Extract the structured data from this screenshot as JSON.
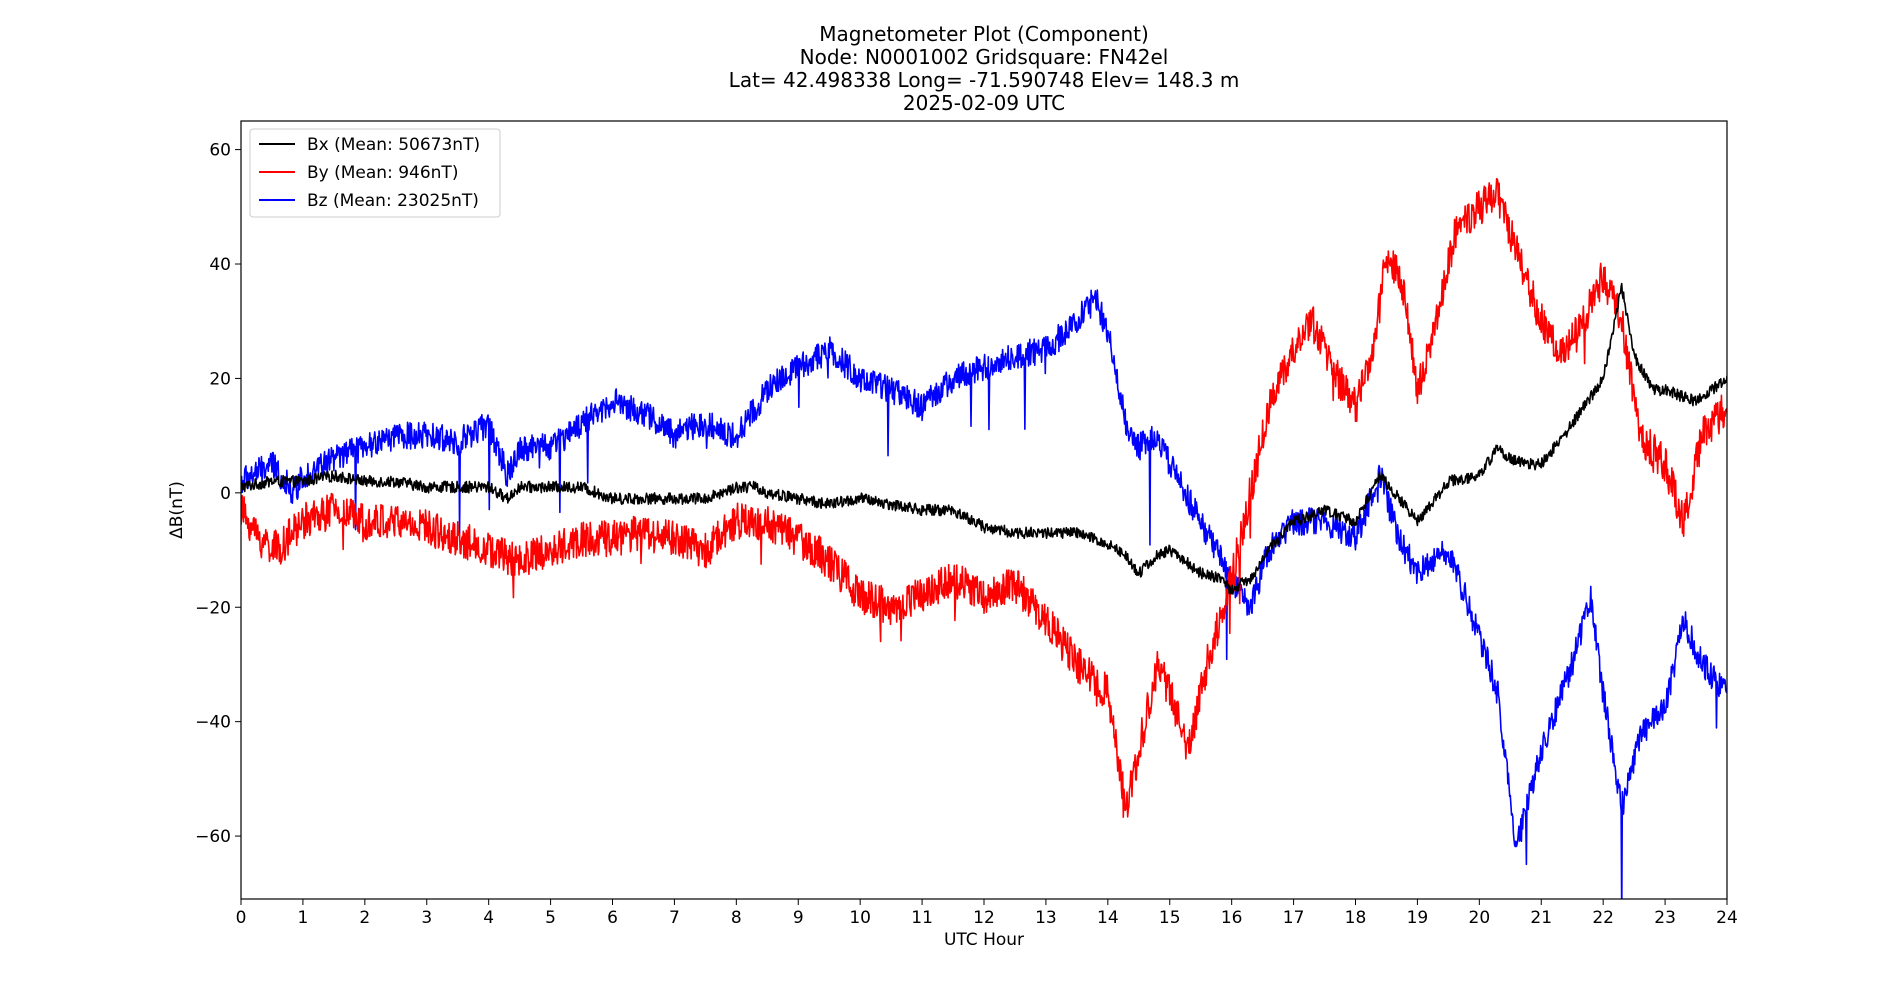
{
  "chart_data": {
    "type": "line",
    "title_lines": [
      "Magnetometer Plot (Component)",
      "Node:  N0001002     Gridsquare:  FN42el",
      "Lat= 42.498338    Long= -71.590748    Elev= 148.3 m",
      "2025-02-09  UTC"
    ],
    "xlabel": "UTC Hour",
    "ylabel": "ΔB(nT)",
    "xlim": [
      0,
      24
    ],
    "ylim": [
      -71,
      65
    ],
    "xticks": [
      0,
      1,
      2,
      3,
      4,
      5,
      6,
      7,
      8,
      9,
      10,
      11,
      12,
      13,
      14,
      15,
      16,
      17,
      18,
      19,
      20,
      21,
      22,
      23,
      24
    ],
    "xtick_labels": [
      "0",
      "1",
      "2",
      "3",
      "4",
      "5",
      "6",
      "7",
      "8",
      "9",
      "10",
      "11",
      "12",
      "13",
      "14",
      "15",
      "16",
      "17",
      "18",
      "19",
      "20",
      "21",
      "22",
      "23",
      "24"
    ],
    "yticks": [
      -60,
      -40,
      -20,
      0,
      20,
      40,
      60
    ],
    "ytick_labels": [
      "−60",
      "−40",
      "−20",
      "0",
      "20",
      "40",
      "60"
    ],
    "grid": false,
    "legend_position": "top-left",
    "series": [
      {
        "name": "Bx (Mean: 50673nT)",
        "color": "#000000",
        "x": [
          0,
          0.5,
          1,
          1.5,
          2,
          2.5,
          3,
          3.5,
          4,
          4.3,
          4.5,
          5,
          5.5,
          6,
          6.5,
          7,
          7.5,
          8,
          8.3,
          8.5,
          9,
          9.5,
          10,
          10.5,
          11,
          11.5,
          12,
          12.5,
          13,
          13.5,
          14,
          14.3,
          14.5,
          14.8,
          15,
          15.5,
          15.8,
          16,
          16.3,
          16.6,
          17,
          17.5,
          18,
          18.4,
          18.7,
          19,
          19.5,
          20,
          20.3,
          20.5,
          20.8,
          21,
          21.5,
          22,
          22.3,
          22.5,
          22.8,
          23,
          23.5,
          24
        ],
        "values": [
          1,
          2,
          2,
          3,
          2,
          2,
          1,
          1,
          1,
          -1,
          1,
          1,
          1,
          -1,
          -1,
          -1,
          -1,
          1,
          1,
          0,
          -1,
          -2,
          -1,
          -2,
          -3,
          -3,
          -6,
          -7,
          -7,
          -7,
          -9,
          -11,
          -14,
          -11,
          -10,
          -14,
          -15,
          -17,
          -15,
          -10,
          -5,
          -3,
          -5,
          3,
          -1,
          -5,
          2,
          3,
          8,
          6,
          5,
          5,
          12,
          20,
          36,
          24,
          18,
          18,
          16,
          20
        ],
        "style_notes": "noisy"
      },
      {
        "name": "By (Mean: 946nT)",
        "color": "#ff0000",
        "x": [
          0,
          0.3,
          0.6,
          1,
          1.5,
          2,
          2.5,
          3,
          3.5,
          4,
          4.5,
          5,
          5.5,
          6,
          6.5,
          7,
          7.5,
          8,
          8.5,
          9,
          9.5,
          10,
          10.5,
          11,
          11.5,
          12,
          12.5,
          13,
          13.5,
          14,
          14.3,
          14.5,
          14.8,
          15,
          15.3,
          15.6,
          16,
          16.3,
          16.6,
          17,
          17.3,
          17.6,
          18,
          18.3,
          18.5,
          18.8,
          19,
          19.3,
          19.6,
          20,
          20.3,
          20.6,
          21,
          21.3,
          21.6,
          22,
          22.3,
          22.6,
          23,
          23.3,
          23.6,
          24
        ],
        "values": [
          -3,
          -8,
          -10,
          -5,
          -3,
          -5,
          -5,
          -6,
          -8,
          -10,
          -12,
          -10,
          -8,
          -8,
          -7,
          -8,
          -10,
          -5,
          -5,
          -8,
          -12,
          -18,
          -20,
          -18,
          -15,
          -18,
          -16,
          -22,
          -30,
          -35,
          -55,
          -45,
          -30,
          -35,
          -45,
          -30,
          -15,
          0,
          15,
          25,
          30,
          22,
          15,
          25,
          42,
          35,
          18,
          30,
          45,
          50,
          52,
          42,
          30,
          25,
          28,
          38,
          30,
          10,
          5,
          -5,
          10,
          15
        ],
        "style_notes": "noisy"
      },
      {
        "name": "Bz (Mean: 23025nT)",
        "color": "#0000ff",
        "x": [
          0,
          0.5,
          0.85,
          1,
          1.5,
          2,
          2.5,
          3,
          3.5,
          4,
          4.3,
          4.5,
          5,
          5.5,
          6,
          6.5,
          7,
          7.35,
          7.5,
          8,
          8.5,
          9,
          9.5,
          10,
          10.5,
          11,
          11.5,
          12,
          12.5,
          13,
          13.5,
          13.8,
          14,
          14.3,
          14.5,
          14.8,
          15,
          15.5,
          16,
          16.3,
          16.6,
          17,
          17.5,
          18,
          18.4,
          18.7,
          19,
          19.5,
          20,
          20.3,
          20.6,
          21,
          21.5,
          21.8,
          22,
          22.3,
          22.6,
          23,
          23.3,
          23.6,
          24
        ],
        "values": [
          2,
          5,
          0,
          3,
          6,
          8,
          10,
          10,
          9,
          12,
          3,
          8,
          8,
          12,
          16,
          14,
          10,
          12,
          12,
          10,
          18,
          22,
          25,
          20,
          18,
          15,
          20,
          22,
          24,
          25,
          30,
          34,
          28,
          12,
          8,
          10,
          5,
          -5,
          -15,
          -20,
          -10,
          -5,
          -5,
          -8,
          3,
          -8,
          -14,
          -10,
          -25,
          -35,
          -62,
          -45,
          -30,
          -18,
          -35,
          -55,
          -42,
          -38,
          -22,
          -30,
          -35
        ],
        "style_notes": "noisy"
      }
    ]
  }
}
